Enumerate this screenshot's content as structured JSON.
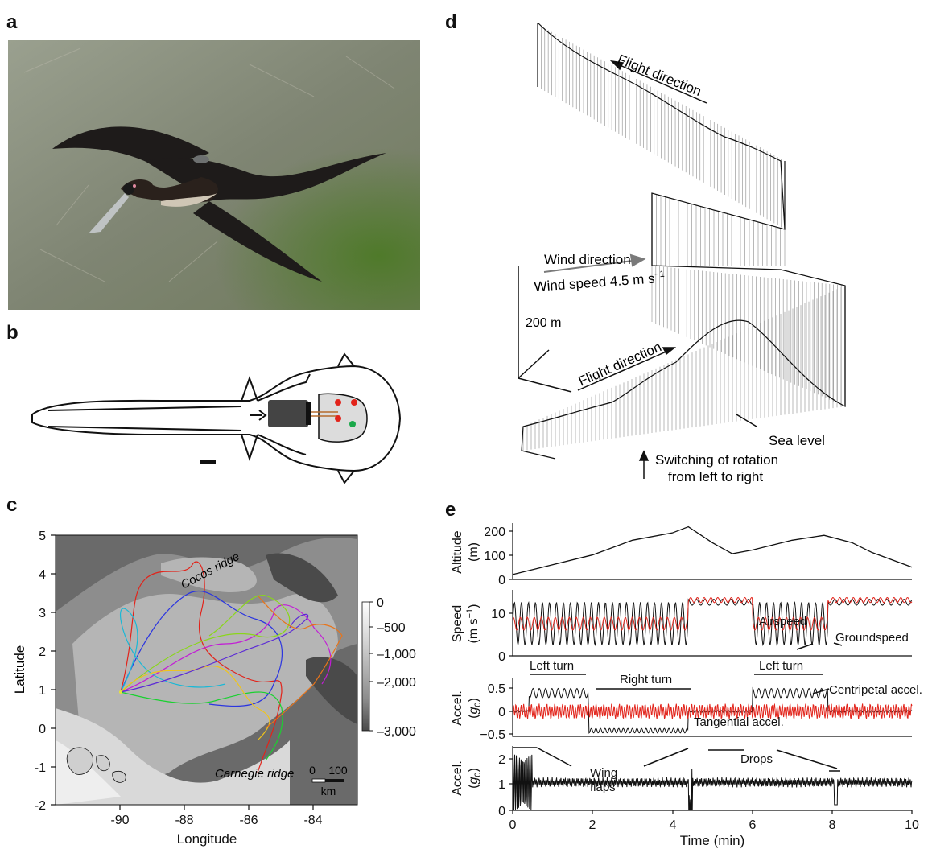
{
  "panel_labels": {
    "a": "a",
    "b": "b",
    "c": "c",
    "d": "d",
    "e": "e"
  },
  "colors": {
    "red": "#e2231a",
    "black": "#111111",
    "photo_bg": "#8a8f7f",
    "bird": "#1e1b1a"
  },
  "map": {
    "xlabel": "Longitude",
    "ylabel": "Latitude",
    "xticks": [
      "-90",
      "-88",
      "-86",
      "-84"
    ],
    "yticks": [
      "5",
      "4",
      "3",
      "2",
      "1",
      "0",
      "-1",
      "-2"
    ],
    "xlim": [
      -92,
      -82.5
    ],
    "ylim": [
      -2,
      5
    ],
    "labels": {
      "cocos": "Cocos ridge",
      "carnegie": "Carnegie ridge"
    },
    "scalebar": {
      "zero": "0",
      "hundred": "100",
      "unit": "km"
    },
    "colorbar": {
      "ticks": [
        "0",
        "–500",
        "–1,000",
        "–2,000",
        "–3,000"
      ]
    }
  },
  "d3": {
    "flight_top": "Flight direction",
    "flight_bottom": "Flight direction",
    "wind_dir": "Wind direction",
    "wind_speed": "Wind speed 4.5 m s",
    "wind_exp": "−1",
    "scale": "200 m",
    "sea": "Sea level",
    "switch1": "Switching of rotation",
    "switch2": "from left to right"
  },
  "chart_data": [
    {
      "type": "line",
      "ylabel": "Altitude (m)",
      "yticks": [
        "200",
        "100",
        "0"
      ],
      "ylim": [
        0,
        230
      ],
      "series": [
        {
          "x": [
            0,
            1,
            2,
            3,
            4,
            4.4,
            5,
            5.5,
            6,
            7,
            7.8,
            8.5,
            9,
            10
          ],
          "y": [
            20,
            60,
            100,
            160,
            190,
            215,
            150,
            105,
            120,
            160,
            180,
            150,
            110,
            50
          ]
        }
      ]
    },
    {
      "type": "line",
      "ylabel": "Speed (m s−1)",
      "yticks": [
        "10",
        "0"
      ],
      "ylim": [
        0,
        15
      ],
      "annotations": {
        "air": "Airspeed",
        "ground": "Groundspeed"
      },
      "series": [
        {
          "name": "Airspeed",
          "note": "red"
        },
        {
          "name": "Groundspeed",
          "note": "black"
        }
      ]
    },
    {
      "type": "line",
      "ylabel": "Accel. (g0)",
      "yticks": [
        "0.5",
        "0",
        "−0.5"
      ],
      "ylim": [
        -0.6,
        0.7
      ],
      "annotations": {
        "left1": "Left turn",
        "right": "Right turn",
        "left2": "Left turn",
        "cent": "Centripetal accel.",
        "tang": "Tangential accel."
      }
    },
    {
      "type": "line",
      "ylabel": "Accel. (g0)",
      "yticks": [
        "2",
        "1",
        "0"
      ],
      "ylim": [
        0,
        2.3
      ],
      "xlabel": "Time (min)",
      "xticks": [
        "0",
        "2",
        "4",
        "6",
        "8",
        "10"
      ],
      "xlim": [
        0,
        10
      ],
      "annotations": {
        "wing1": "Wing",
        "wing2": "flaps",
        "drops": "Drops"
      }
    }
  ]
}
